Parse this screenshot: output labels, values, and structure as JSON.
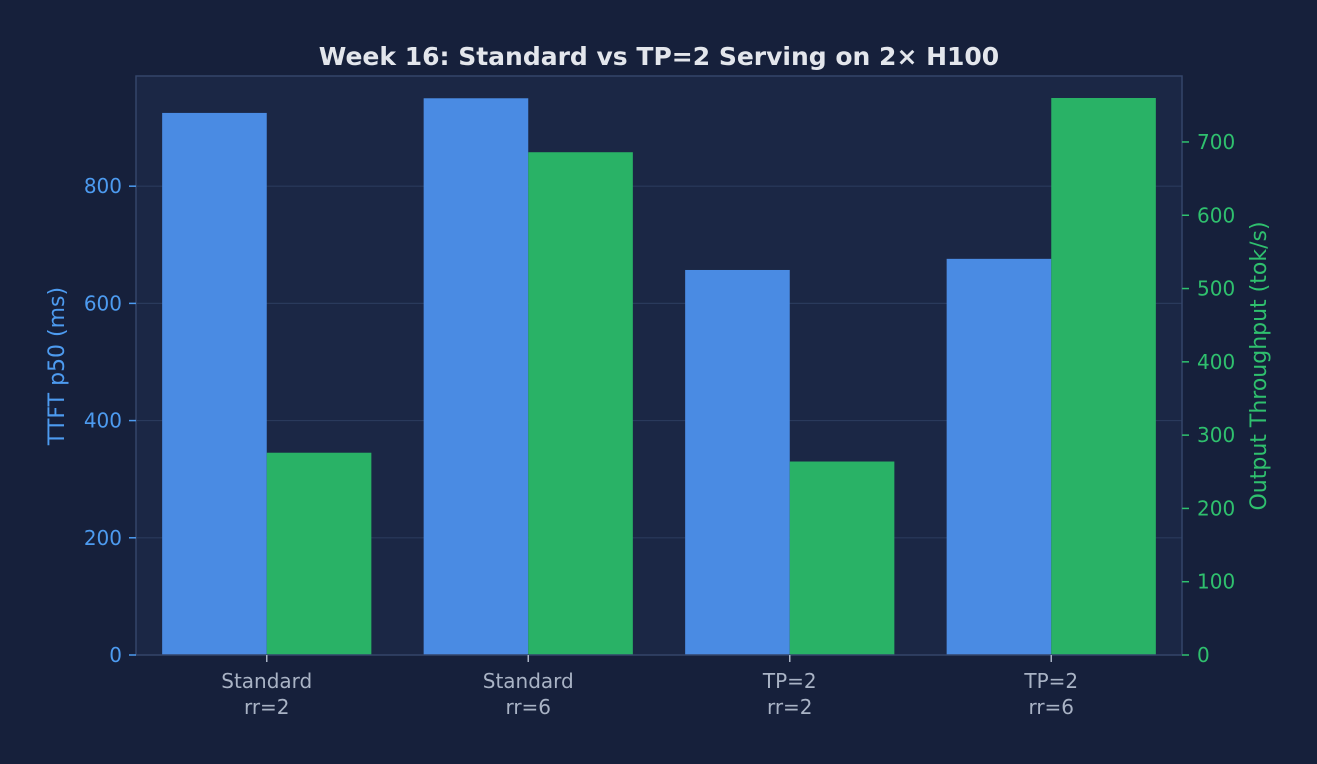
{
  "colors": {
    "background": "#16203b",
    "plot_background": "#1b2745",
    "frame": "#34456a",
    "grid": "#2a3a5c",
    "title": "#e3e6ec",
    "left_axis": "#4d9bf0",
    "right_axis": "#2fc06e",
    "category_text": "#a9b3c5"
  },
  "chart_data": {
    "type": "bar",
    "title": "Week 16: Standard vs TP=2 Serving on 2× H100",
    "categories": [
      [
        "Standard",
        "rr=2"
      ],
      [
        "Standard",
        "rr=6"
      ],
      [
        "TP=2",
        "rr=2"
      ],
      [
        "TP=2",
        "rr=6"
      ]
    ],
    "series": [
      {
        "axis": "left",
        "color": "#4a8be3",
        "values": [
          925,
          950,
          657,
          676
        ]
      },
      {
        "axis": "right",
        "color": "#29b266",
        "values": [
          276,
          686,
          264,
          760
        ]
      }
    ],
    "y_left": {
      "label": "TTFT p50 (ms)",
      "ylim": [
        0,
        988
      ],
      "ticks": [
        0,
        200,
        400,
        600,
        800
      ]
    },
    "y_right": {
      "label": "Output Throughput (tok/s)",
      "ylim": [
        0,
        790
      ],
      "ticks": [
        0,
        100,
        200,
        300,
        400,
        500,
        600,
        700
      ]
    },
    "grid": true,
    "legend": "none"
  }
}
